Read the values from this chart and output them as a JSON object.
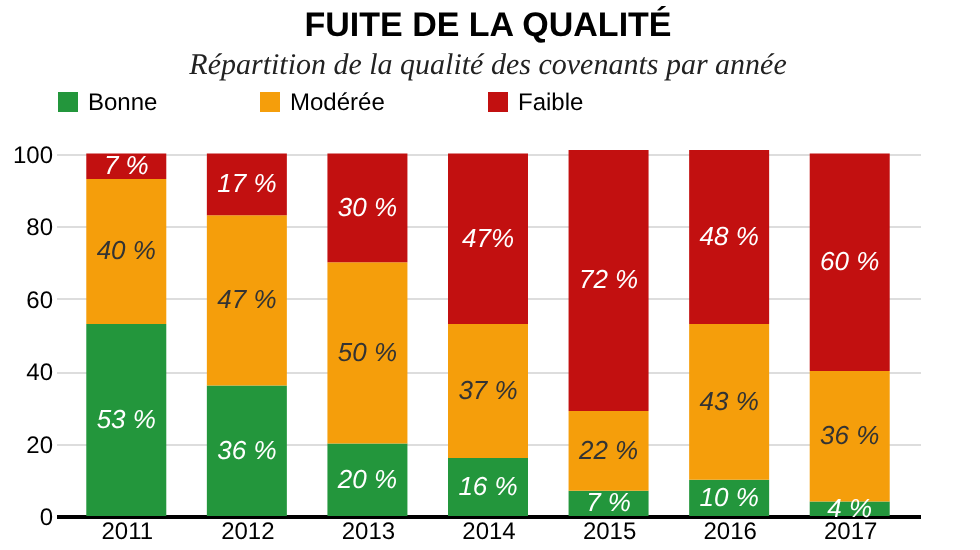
{
  "chart_data": {
    "type": "bar",
    "title": "FUITE DE LA QUALITÉ",
    "subtitle": "Répartition de la qualité des covenants par année",
    "categories": [
      "2011",
      "2012",
      "2013",
      "2014",
      "2015",
      "2016",
      "2017"
    ],
    "stacked": true,
    "series": [
      {
        "name": "Bonne",
        "color": "#23963c",
        "values": [
          53,
          36,
          20,
          16,
          7,
          10,
          4
        ],
        "value_labels": [
          "53 %",
          "36 %",
          "20 %",
          "16 %",
          "7 %",
          "10 %",
          "4 %"
        ]
      },
      {
        "name": "Modérée",
        "color": "#f59e0b",
        "values": [
          40,
          47,
          50,
          37,
          22,
          43,
          36
        ],
        "value_labels": [
          "40 %",
          "47 %",
          "50 %",
          "37 %",
          "22 %",
          "43 %",
          "36 %"
        ]
      },
      {
        "name": "Faible",
        "color": "#c21010",
        "values": [
          7,
          17,
          30,
          47,
          72,
          48,
          60
        ],
        "value_labels": [
          "7 %",
          "17 %",
          "30 %",
          "47%",
          "72 %",
          "48 %",
          "60 %"
        ]
      }
    ],
    "ylim": [
      0,
      101
    ],
    "yticks": [
      0,
      20,
      40,
      60,
      80,
      100
    ],
    "grid": "y",
    "legend": "top"
  }
}
